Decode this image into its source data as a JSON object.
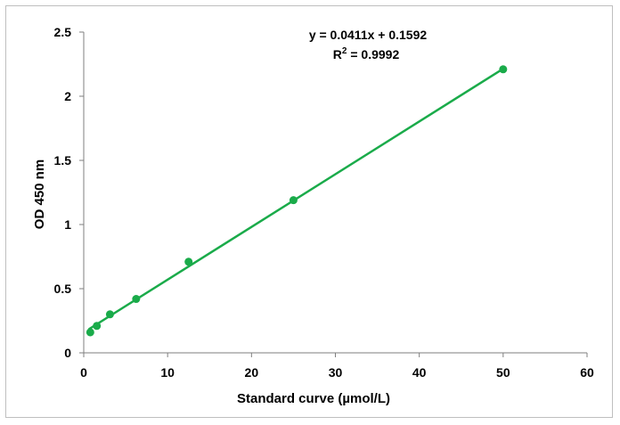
{
  "chart_data": {
    "type": "scatter",
    "xlabel": "Standard curve (µmol/L)",
    "ylabel": "OD 450 nm",
    "xlim": [
      0,
      60
    ],
    "ylim": [
      0,
      2.5
    ],
    "xticks": [
      0,
      10,
      20,
      30,
      40,
      50,
      60
    ],
    "yticks": [
      0,
      0.5,
      1,
      1.5,
      2,
      2.5
    ],
    "xtick_labels": [
      "0",
      "10",
      "20",
      "30",
      "40",
      "50",
      "60"
    ],
    "ytick_labels": [
      "0",
      "0.5",
      "1",
      "1.5",
      "2",
      "2.5"
    ],
    "grid": false,
    "series": [
      {
        "x": [
          0.78,
          1.56,
          3.125,
          6.25,
          12.5,
          25,
          50
        ],
        "y": [
          0.16,
          0.21,
          0.3,
          0.42,
          0.71,
          1.19,
          2.21
        ],
        "color": "#1aab4a"
      }
    ],
    "trendline": {
      "slope": 0.0411,
      "intercept": 0.1592,
      "x_range": [
        0.6,
        50
      ],
      "color": "#1aab4a"
    },
    "annotations": {
      "equation": "y = 0.0411x + 0.1592",
      "r2_prefix": "R",
      "r2_sup": "2",
      "r2_value": " = 0.9992"
    }
  }
}
